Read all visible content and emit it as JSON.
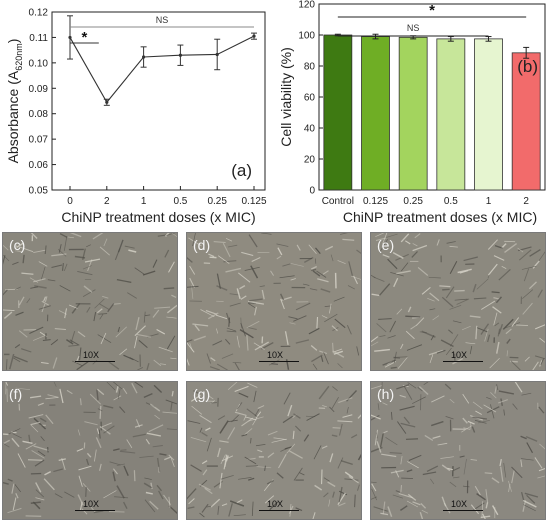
{
  "chart_data": [
    {
      "id": "a",
      "type": "line",
      "panel_label": "(a)",
      "xlabel": "ChiNP treatment doses (x MIC)",
      "ylabel_main": "Absorbance (A",
      "ylabel_sub": "620nm",
      "ylabel_end": ")",
      "categories": [
        "0",
        "2",
        "1",
        "0.5",
        "0.25",
        "0.125"
      ],
      "values": [
        0.11,
        0.0845,
        0.1023,
        0.103,
        0.1033,
        0.1105
      ],
      "errors": [
        0.0085,
        0.0012,
        0.004,
        0.004,
        0.006,
        0.0012
      ],
      "ylim": [
        0.05,
        0.12
      ],
      "yticks": [
        "0.05",
        "0.06",
        "0.07",
        "0.08",
        "0.09",
        "0.10",
        "0.11",
        "0.12"
      ],
      "annotations": [
        {
          "text": "NS",
          "from": 0,
          "to": 5
        },
        {
          "text": "*",
          "from": 0,
          "to": 1
        }
      ]
    },
    {
      "id": "b",
      "type": "bar",
      "panel_label": "(b)",
      "xlabel": "ChiNP treatment doses (x MIC)",
      "ylabel": "Cell viability (%)",
      "categories": [
        "Control",
        "0.125",
        "0.25",
        "0.5",
        "1",
        "2"
      ],
      "values": [
        100,
        99,
        98.5,
        97.5,
        97.5,
        88.5
      ],
      "errors": [
        0.5,
        1.5,
        1.0,
        1.5,
        1.5,
        3.5
      ],
      "colors": [
        "#3e7a12",
        "#6fae25",
        "#a3d45e",
        "#c7e69a",
        "#e6f5d0",
        "#f26b6b"
      ],
      "ylim": [
        0,
        120
      ],
      "yticks": [
        "0",
        "20",
        "40",
        "60",
        "80",
        "100",
        "120"
      ],
      "annotations": [
        {
          "text": "*",
          "from": 0,
          "to": 5
        },
        {
          "text": "NS",
          "from": 0,
          "to": 4
        }
      ]
    }
  ],
  "micrographs": [
    {
      "label": "(c)",
      "scale": "10X"
    },
    {
      "label": "(d)",
      "scale": "10X"
    },
    {
      "label": "(e)",
      "scale": "10X"
    },
    {
      "label": "(f)",
      "scale": "10X"
    },
    {
      "label": "(g)",
      "scale": "10X"
    },
    {
      "label": "(h)",
      "scale": "10X"
    }
  ]
}
